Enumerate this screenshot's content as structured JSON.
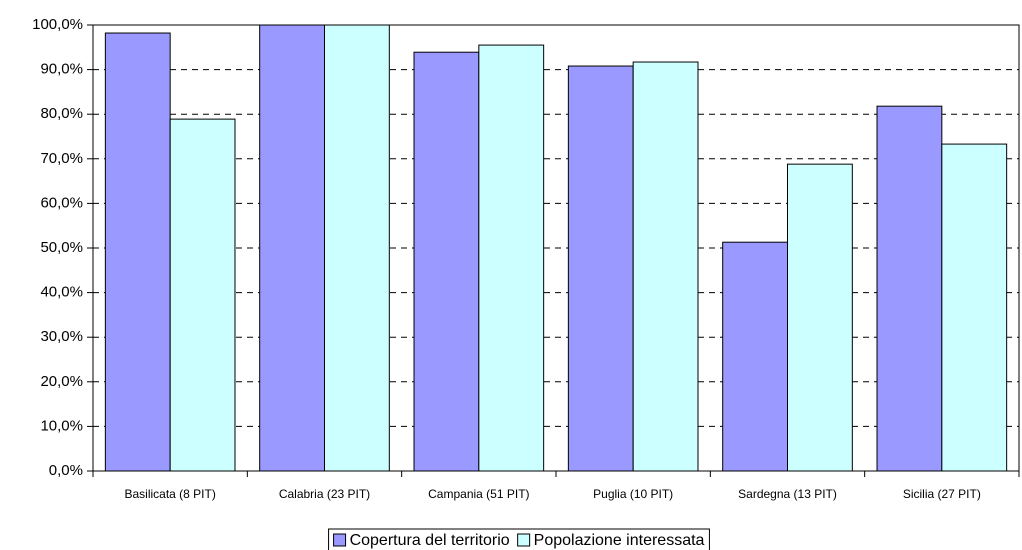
{
  "chart_data": {
    "type": "bar",
    "categories": [
      "Basilicata (8 PIT)",
      "Calabria (23 PIT)",
      "Campania (51 PIT)",
      "Puglia (10 PIT)",
      "Sardegna (13 PIT)",
      "Sicilia (27 PIT)"
    ],
    "series": [
      {
        "name": "Copertura del territorio",
        "color": "#9999ff",
        "values": [
          98.2,
          100,
          93.9,
          90.8,
          51.3,
          81.8
        ]
      },
      {
        "name": "Popolazione interessata",
        "color": "#ccffff",
        "values": [
          78.9,
          100,
          95.5,
          91.7,
          68.8,
          73.3
        ]
      }
    ],
    "ylim": [
      0,
      100
    ],
    "yticks": [
      {
        "value": 0,
        "label": "0,0%"
      },
      {
        "value": 10,
        "label": "10,0%"
      },
      {
        "value": 20,
        "label": "20,0%"
      },
      {
        "value": 30,
        "label": "30,0%"
      },
      {
        "value": 40,
        "label": "40,0%"
      },
      {
        "value": 50,
        "label": "50,0%"
      },
      {
        "value": 60,
        "label": "60,0%"
      },
      {
        "value": 70,
        "label": "70,0%"
      },
      {
        "value": 80,
        "label": "80,0%"
      },
      {
        "value": 90,
        "label": "90,0%"
      },
      {
        "value": 100,
        "label": "100,0%"
      }
    ],
    "grid": true,
    "legend": "bottom"
  }
}
